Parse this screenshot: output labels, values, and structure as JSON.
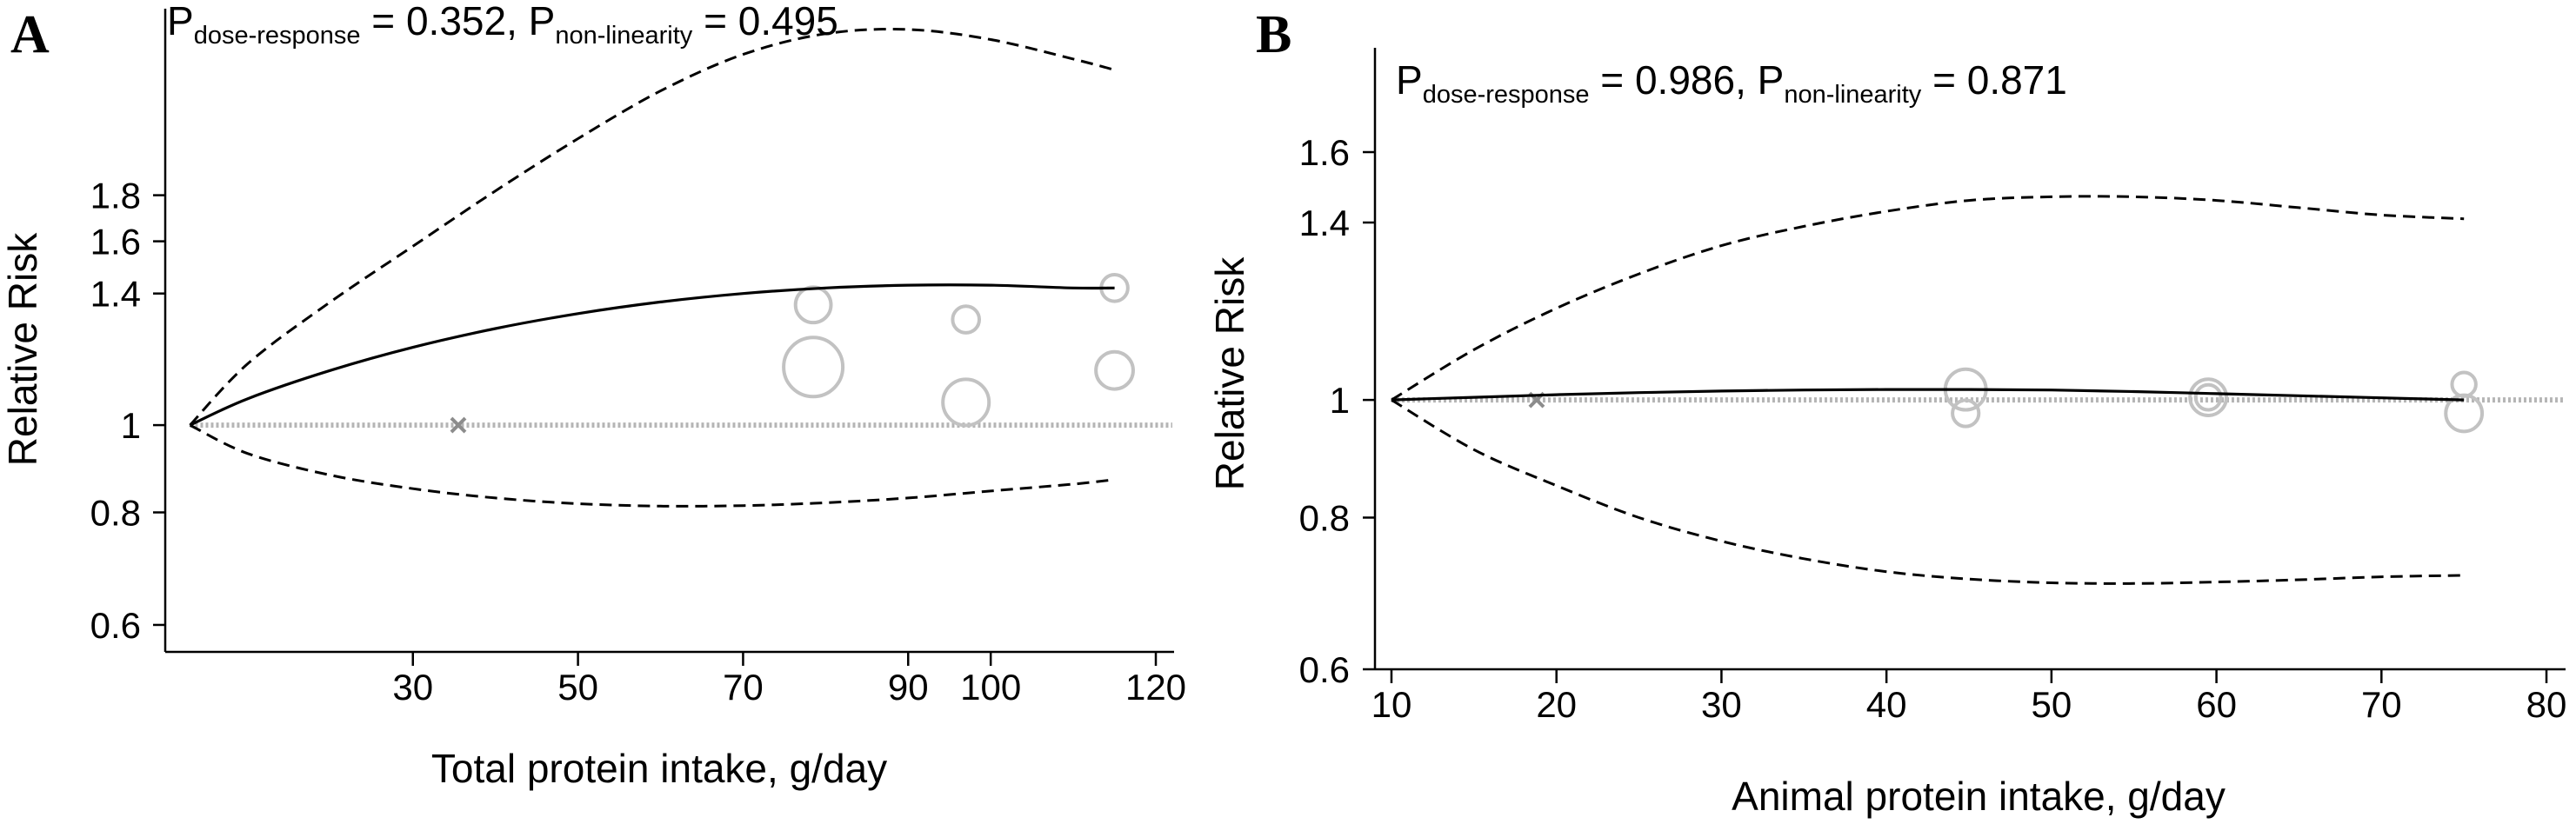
{
  "chart_data": [
    {
      "panel": "A",
      "type": "line",
      "annotation": {
        "p_dose_label": "P",
        "p_dose_sub": "dose-response",
        "p_dose_value": " = 0.352, ",
        "p_nonlin_label": "P",
        "p_nonlin_sub": "non-linearity",
        "p_nonlin_value": " = 0.495"
      },
      "xlabel": "Total protein intake, g/day",
      "ylabel": "Relative Risk",
      "x_range": [
        0,
        122
      ],
      "y_range": [
        0.56,
        2.9
      ],
      "y_scale": "log",
      "x_ticks": [
        30,
        50,
        70,
        90,
        100,
        120
      ],
      "x_tick_labels": [
        "30",
        "50",
        "70",
        "90",
        "100",
        "120"
      ],
      "y_ticks": [
        0.6,
        0.8,
        1,
        1.4,
        1.6,
        1.8
      ],
      "y_tick_labels": [
        "0.6",
        "0.8",
        "1",
        "1.4",
        "1.6",
        "1.8"
      ],
      "reference_line": 1,
      "reference_marker": {
        "x": 35.5,
        "y": 1.0
      },
      "estimate": {
        "x": [
          3,
          10,
          20,
          30,
          40,
          50,
          60,
          70,
          80,
          90,
          100,
          110,
          115
        ],
        "y": [
          1.0,
          1.07,
          1.15,
          1.22,
          1.28,
          1.33,
          1.37,
          1.4,
          1.42,
          1.43,
          1.43,
          1.42,
          1.42
        ]
      },
      "upper_ci": {
        "x": [
          3,
          10,
          20,
          30,
          40,
          50,
          60,
          70,
          80,
          90,
          100,
          110,
          115
        ],
        "y": [
          1.0,
          1.17,
          1.37,
          1.58,
          1.82,
          2.08,
          2.35,
          2.58,
          2.72,
          2.75,
          2.68,
          2.55,
          2.48
        ]
      },
      "lower_ci": {
        "x": [
          3,
          10,
          20,
          30,
          40,
          50,
          60,
          70,
          80,
          90,
          100,
          110,
          115
        ],
        "y": [
          1.0,
          0.93,
          0.88,
          0.85,
          0.83,
          0.818,
          0.813,
          0.814,
          0.82,
          0.83,
          0.845,
          0.86,
          0.87
        ]
      },
      "studies": [
        {
          "x": 78.5,
          "y": 1.36,
          "size": 0.6
        },
        {
          "x": 78.5,
          "y": 1.16,
          "size": 1.0
        },
        {
          "x": 97,
          "y": 1.31,
          "size": 0.45
        },
        {
          "x": 97,
          "y": 1.06,
          "size": 0.78
        },
        {
          "x": 115,
          "y": 1.42,
          "size": 0.45
        },
        {
          "x": 115,
          "y": 1.15,
          "size": 0.63
        }
      ]
    },
    {
      "panel": "B",
      "type": "line",
      "annotation": {
        "p_dose_label": "P",
        "p_dose_sub": "dose-response",
        "p_dose_value": " = 0.986, ",
        "p_nonlin_label": "P",
        "p_nonlin_sub": "non-linearity",
        "p_nonlin_value": " = 0.871"
      },
      "xlabel": "Animal protein intake, g/day",
      "ylabel": "Relative Risk",
      "x_range": [
        9,
        81
      ],
      "y_range": [
        0.6,
        1.95
      ],
      "y_scale": "log",
      "x_ticks": [
        10,
        20,
        30,
        40,
        50,
        60,
        70,
        80
      ],
      "x_tick_labels": [
        "10",
        "20",
        "30",
        "40",
        "50",
        "60",
        "70",
        "80"
      ],
      "y_ticks": [
        0.6,
        0.8,
        1,
        1.4,
        1.6
      ],
      "y_tick_labels": [
        "0.6",
        "0.8",
        "1",
        "1.4",
        "1.6"
      ],
      "reference_line": 1,
      "reference_marker": {
        "x": 18.8,
        "y": 1.0
      },
      "estimate": {
        "x": [
          10,
          15,
          20,
          25,
          30,
          35,
          40,
          45,
          50,
          55,
          60,
          65,
          70,
          75
        ],
        "y": [
          1.0,
          1.005,
          1.01,
          1.014,
          1.017,
          1.019,
          1.02,
          1.02,
          1.019,
          1.016,
          1.012,
          1.008,
          1.004,
          1.0
        ]
      },
      "upper_ci": {
        "x": [
          10,
          15,
          20,
          25,
          30,
          35,
          40,
          45,
          50,
          55,
          60,
          65,
          70,
          75
        ],
        "y": [
          1.0,
          1.1,
          1.19,
          1.27,
          1.34,
          1.39,
          1.43,
          1.46,
          1.47,
          1.47,
          1.46,
          1.44,
          1.42,
          1.41
        ]
      },
      "lower_ci": {
        "x": [
          10,
          15,
          20,
          25,
          30,
          35,
          40,
          45,
          50,
          55,
          60,
          65,
          70,
          75
        ],
        "y": [
          1.0,
          0.91,
          0.85,
          0.8,
          0.765,
          0.74,
          0.722,
          0.712,
          0.707,
          0.706,
          0.708,
          0.711,
          0.715,
          0.717
        ]
      },
      "studies": [
        {
          "x": 44.8,
          "y": 1.02,
          "size": 0.65
        },
        {
          "x": 44.8,
          "y": 0.975,
          "size": 0.42
        },
        {
          "x": 59.5,
          "y": 1.005,
          "size": 0.58
        },
        {
          "x": 59.5,
          "y": 1.005,
          "size": 0.4
        },
        {
          "x": 75,
          "y": 1.03,
          "size": 0.38
        },
        {
          "x": 75,
          "y": 0.975,
          "size": 0.58
        }
      ]
    }
  ]
}
